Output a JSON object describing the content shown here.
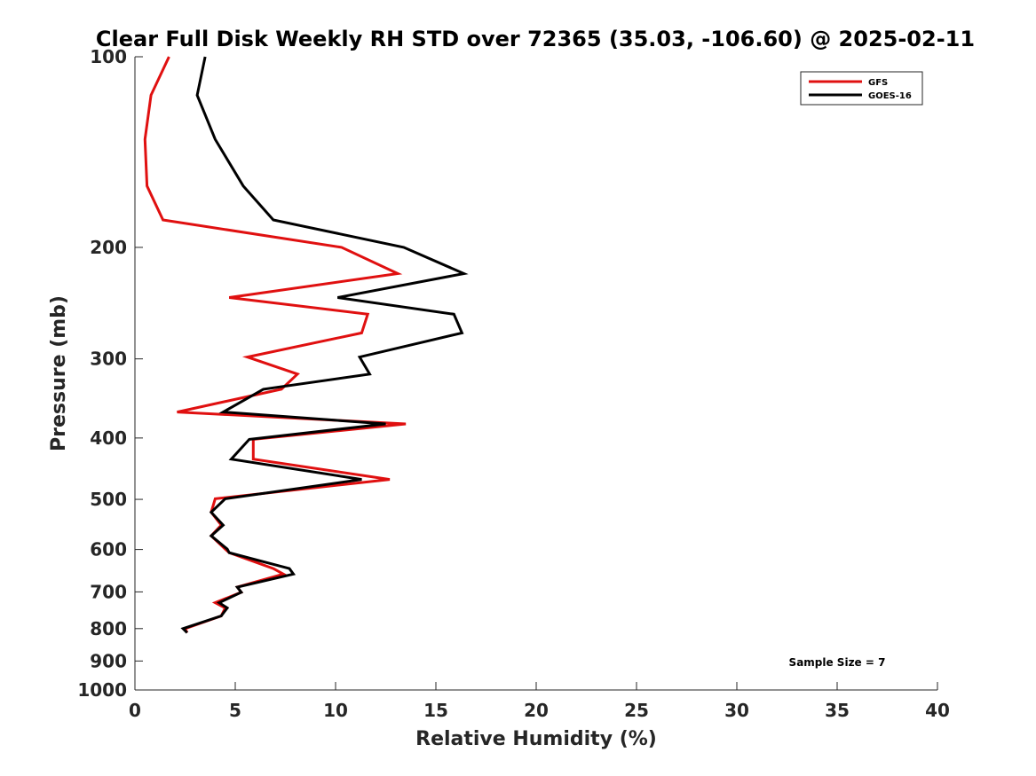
{
  "chart_data": {
    "type": "line",
    "title": "Clear Full Disk Weekly RH STD over 72365 (35.03, -106.60) @ 2025-02-11",
    "xlabel": "Relative Humidity (%)",
    "ylabel": "Pressure (mb)",
    "xlim": [
      0,
      40
    ],
    "ylim": [
      100,
      1000
    ],
    "y_scale": "log",
    "y_reversed": true,
    "grid": false,
    "legend_position": "top-right",
    "x_ticks": [
      0,
      5,
      10,
      15,
      20,
      25,
      30,
      35,
      40
    ],
    "y_ticks": [
      100,
      200,
      300,
      400,
      500,
      600,
      700,
      800,
      900,
      1000
    ],
    "series": [
      {
        "name": "GFS",
        "color": "#e01010",
        "x": [
          1.7,
          0.8,
          0.5,
          0.6,
          1.4,
          10.3,
          13.1,
          4.7,
          11.6,
          11.3,
          5.6,
          8.1,
          7.3,
          2.1,
          13.5,
          5.9,
          5.9,
          12.7,
          4.0,
          3.8,
          4.3,
          3.8,
          4.5,
          4.7,
          6.9,
          7.4,
          5.1,
          5.3,
          4.0,
          4.5,
          4.3,
          2.5,
          2.6
        ],
        "y": [
          100,
          115,
          135,
          160,
          181,
          200,
          220,
          240,
          255,
          273,
          298,
          317,
          335,
          364,
          380,
          402,
          432,
          465,
          499,
          524,
          549,
          571,
          599,
          607,
          643,
          656,
          688,
          701,
          728,
          742,
          764,
          800,
          812
        ]
      },
      {
        "name": "GOES-16",
        "color": "#000000",
        "x": [
          3.5,
          3.1,
          4.0,
          5.4,
          6.9,
          13.4,
          16.4,
          10.1,
          15.9,
          16.3,
          11.2,
          11.7,
          6.4,
          4.4,
          12.5,
          5.7,
          4.8,
          11.3,
          4.5,
          3.8,
          4.4,
          3.8,
          4.6,
          4.7,
          7.7,
          7.9,
          5.1,
          5.3,
          4.2,
          4.6,
          4.3,
          2.4,
          2.6
        ],
        "y": [
          100,
          115,
          135,
          160,
          181,
          200,
          220,
          240,
          255,
          273,
          298,
          317,
          335,
          364,
          380,
          402,
          432,
          465,
          499,
          524,
          549,
          571,
          599,
          607,
          643,
          656,
          688,
          701,
          728,
          742,
          764,
          800,
          812
        ]
      }
    ],
    "annotations": [
      "Sample Size = 7"
    ]
  }
}
